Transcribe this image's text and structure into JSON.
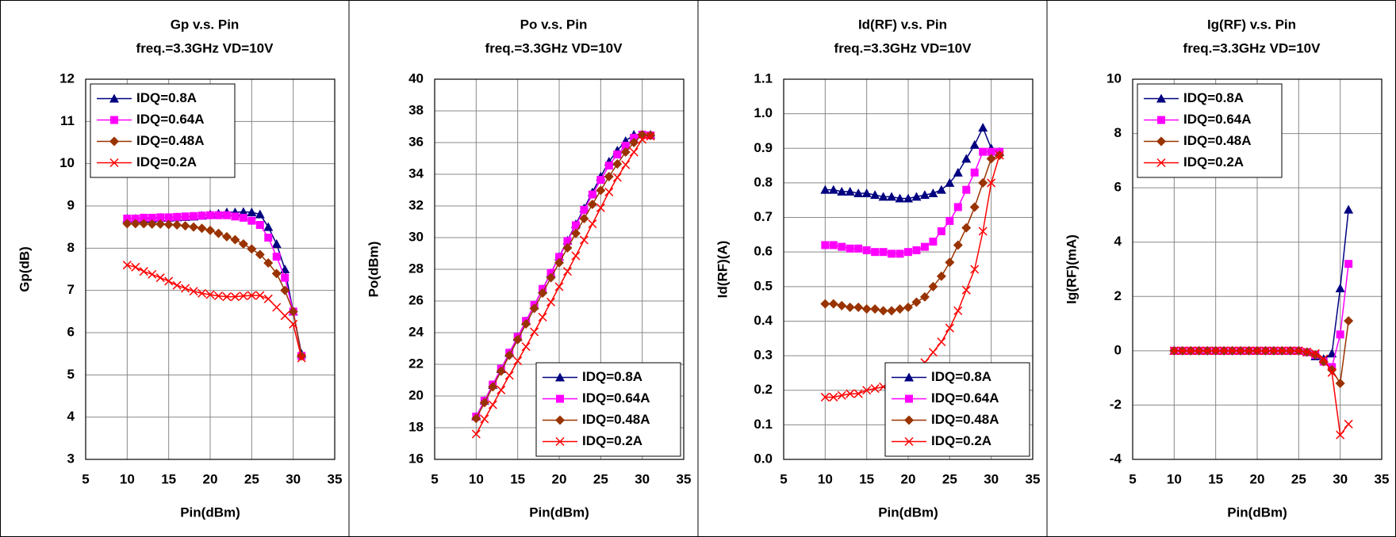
{
  "chart_data": [
    {
      "type": "line",
      "title": "Gp v.s. Pin",
      "subtitle": "freq.=3.3GHz  VD=10V",
      "x_label": "Pin(dBm)",
      "y_label": "Gp(dB)",
      "xlim": [
        5,
        35
      ],
      "xticks": [
        5,
        10,
        15,
        20,
        25,
        30,
        35
      ],
      "ylim": [
        3,
        12
      ],
      "yticks": [
        3,
        4,
        5,
        6,
        7,
        8,
        9,
        10,
        11,
        12
      ],
      "grid": true,
      "legend": "upper left",
      "x": [
        10,
        11,
        12,
        13,
        14,
        15,
        16,
        17,
        18,
        19,
        20,
        21,
        22,
        23,
        24,
        25,
        26,
        27,
        28,
        29,
        30,
        31
      ],
      "series": [
        {
          "name": "IDQ=0.8A",
          "color": "#000080",
          "marker": "triangle",
          "values": [
            8.7,
            8.7,
            8.7,
            8.7,
            8.72,
            8.72,
            8.73,
            8.74,
            8.75,
            8.77,
            8.8,
            8.82,
            8.85,
            8.85,
            8.86,
            8.85,
            8.8,
            8.5,
            8.1,
            7.5,
            6.5,
            5.5
          ]
        },
        {
          "name": "IDQ=0.64A",
          "color": "#ff00ff",
          "marker": "square",
          "values": [
            8.7,
            8.7,
            8.72,
            8.72,
            8.73,
            8.73,
            8.74,
            8.75,
            8.76,
            8.77,
            8.78,
            8.78,
            8.78,
            8.75,
            8.72,
            8.65,
            8.55,
            8.25,
            7.8,
            7.3,
            6.5,
            5.45
          ]
        },
        {
          "name": "IDQ=0.48A",
          "color": "#993300",
          "marker": "diamond",
          "values": [
            8.58,
            8.58,
            8.58,
            8.57,
            8.57,
            8.56,
            8.55,
            8.53,
            8.5,
            8.47,
            8.42,
            8.35,
            8.27,
            8.2,
            8.1,
            7.98,
            7.85,
            7.65,
            7.4,
            7.0,
            6.5,
            5.45
          ]
        },
        {
          "name": "IDQ=0.2A",
          "color": "#ff0000",
          "marker": "x",
          "values": [
            7.6,
            7.55,
            7.45,
            7.38,
            7.3,
            7.22,
            7.12,
            7.05,
            6.98,
            6.93,
            6.9,
            6.87,
            6.85,
            6.85,
            6.87,
            6.88,
            6.88,
            6.8,
            6.6,
            6.4,
            6.2,
            5.4
          ]
        }
      ]
    },
    {
      "type": "line",
      "title": "Po v.s. Pin",
      "subtitle": "freq.=3.3GHz  VD=10V",
      "x_label": "Pin(dBm)",
      "y_label": "Po(dBm)",
      "xlim": [
        5,
        35
      ],
      "xticks": [
        5,
        10,
        15,
        20,
        25,
        30,
        35
      ],
      "ylim": [
        16,
        40
      ],
      "yticks": [
        16,
        18,
        20,
        22,
        24,
        26,
        28,
        30,
        32,
        34,
        36,
        38,
        40
      ],
      "grid": true,
      "legend": "lower right",
      "x": [
        10,
        11,
        12,
        13,
        14,
        15,
        16,
        17,
        18,
        19,
        20,
        21,
        22,
        23,
        24,
        25,
        26,
        27,
        28,
        29,
        30,
        31
      ],
      "series": [
        {
          "name": "IDQ=0.8A",
          "color": "#000080",
          "marker": "triangle",
          "values": [
            18.7,
            19.7,
            20.7,
            21.7,
            22.72,
            23.72,
            24.73,
            25.74,
            26.75,
            27.77,
            28.8,
            29.82,
            30.85,
            31.85,
            32.86,
            33.85,
            34.8,
            35.5,
            36.1,
            36.5,
            36.5,
            36.5
          ]
        },
        {
          "name": "IDQ=0.64A",
          "color": "#ff00ff",
          "marker": "square",
          "values": [
            18.7,
            19.7,
            20.72,
            21.72,
            22.73,
            23.73,
            24.74,
            25.75,
            26.76,
            27.77,
            28.78,
            29.78,
            30.78,
            31.75,
            32.72,
            33.65,
            34.55,
            35.25,
            35.8,
            36.3,
            36.5,
            36.45
          ]
        },
        {
          "name": "IDQ=0.48A",
          "color": "#993300",
          "marker": "diamond",
          "values": [
            18.58,
            19.58,
            20.58,
            21.57,
            22.57,
            23.56,
            24.55,
            25.53,
            26.5,
            27.47,
            28.42,
            29.35,
            30.27,
            31.2,
            32.1,
            32.98,
            33.85,
            34.65,
            35.4,
            36.0,
            36.5,
            36.45
          ]
        },
        {
          "name": "IDQ=0.2A",
          "color": "#ff0000",
          "marker": "x",
          "values": [
            17.6,
            18.55,
            19.45,
            20.38,
            21.3,
            22.22,
            23.12,
            24.05,
            24.98,
            25.93,
            26.9,
            27.87,
            28.85,
            29.85,
            30.87,
            31.88,
            32.88,
            33.8,
            34.6,
            35.4,
            36.2,
            36.4
          ]
        }
      ]
    },
    {
      "type": "line",
      "title": "Id(RF) v.s. Pin",
      "subtitle": "freq.=3.3GHz  VD=10V",
      "x_label": "Pin(dBm)",
      "y_label": "Id(RF)(A)",
      "xlim": [
        5,
        35
      ],
      "xticks": [
        5,
        10,
        15,
        20,
        25,
        30,
        35
      ],
      "ylim": [
        0,
        1.1
      ],
      "yticks": [
        {
          "value": 0,
          "label": "0.0"
        },
        0.1,
        0.2,
        0.3,
        0.4,
        0.5,
        0.6,
        0.7,
        0.8,
        0.9,
        {
          "value": 1,
          "label": "1.0"
        },
        1.1
      ],
      "grid": true,
      "legend": "lower right",
      "x": [
        10,
        11,
        12,
        13,
        14,
        15,
        16,
        17,
        18,
        19,
        20,
        21,
        22,
        23,
        24,
        25,
        26,
        27,
        28,
        29,
        30,
        31
      ],
      "series": [
        {
          "name": "IDQ=0.8A",
          "color": "#000080",
          "marker": "triangle",
          "values": [
            0.78,
            0.78,
            0.775,
            0.775,
            0.77,
            0.77,
            0.765,
            0.76,
            0.76,
            0.755,
            0.755,
            0.76,
            0.765,
            0.77,
            0.78,
            0.8,
            0.83,
            0.87,
            0.91,
            0.96,
            0.9,
            0.89
          ]
        },
        {
          "name": "IDQ=0.64A",
          "color": "#ff00ff",
          "marker": "square",
          "values": [
            0.62,
            0.62,
            0.615,
            0.61,
            0.61,
            0.605,
            0.6,
            0.6,
            0.595,
            0.595,
            0.6,
            0.605,
            0.615,
            0.63,
            0.66,
            0.69,
            0.73,
            0.78,
            0.83,
            0.89,
            0.89,
            0.89
          ]
        },
        {
          "name": "IDQ=0.48A",
          "color": "#993300",
          "marker": "diamond",
          "values": [
            0.45,
            0.45,
            0.445,
            0.44,
            0.44,
            0.435,
            0.435,
            0.43,
            0.43,
            0.435,
            0.44,
            0.455,
            0.47,
            0.5,
            0.53,
            0.57,
            0.62,
            0.67,
            0.73,
            0.8,
            0.87,
            0.88
          ]
        },
        {
          "name": "IDQ=0.2A",
          "color": "#ff0000",
          "marker": "x",
          "values": [
            0.18,
            0.18,
            0.185,
            0.19,
            0.19,
            0.2,
            0.205,
            0.21,
            0.22,
            0.23,
            0.245,
            0.26,
            0.28,
            0.31,
            0.34,
            0.38,
            0.43,
            0.49,
            0.55,
            0.66,
            0.8,
            0.88
          ]
        }
      ]
    },
    {
      "type": "line",
      "title": "Ig(RF)  v.s.  Pin",
      "subtitle": "freq.=3.3GHz  VD=10V",
      "x_label": "Pin(dBm)",
      "y_label": "Ig(RF)(mA)",
      "xlim": [
        5,
        35
      ],
      "xticks": [
        5,
        10,
        15,
        20,
        25,
        30,
        35
      ],
      "ylim": [
        -4,
        10
      ],
      "yticks": [
        -4,
        -2,
        0,
        2,
        4,
        6,
        8,
        10
      ],
      "grid": true,
      "legend": "upper left",
      "x": [
        10,
        11,
        12,
        13,
        14,
        15,
        16,
        17,
        18,
        19,
        20,
        21,
        22,
        23,
        24,
        25,
        26,
        27,
        28,
        29,
        30,
        31
      ],
      "series": [
        {
          "name": "IDQ=0.8A",
          "color": "#000080",
          "marker": "triangle",
          "values": [
            0,
            0,
            0,
            0,
            0,
            0,
            0,
            0,
            0,
            0,
            0,
            0,
            0,
            0,
            0,
            0,
            -0.05,
            -0.2,
            -0.3,
            -0.1,
            2.3,
            5.2
          ]
        },
        {
          "name": "IDQ=0.64A",
          "color": "#ff00ff",
          "marker": "square",
          "values": [
            0,
            0,
            0,
            0,
            0,
            0,
            0,
            0,
            0,
            0,
            0,
            0,
            0,
            0,
            0,
            0,
            -0.05,
            -0.15,
            -0.4,
            -0.6,
            0.6,
            3.2
          ]
        },
        {
          "name": "IDQ=0.48A",
          "color": "#993300",
          "marker": "diamond",
          "values": [
            0,
            0,
            0,
            0,
            0,
            0,
            0,
            0,
            0,
            0,
            0,
            0,
            0,
            0,
            0,
            0,
            -0.05,
            -0.15,
            -0.4,
            -0.7,
            -1.2,
            1.1
          ]
        },
        {
          "name": "IDQ=0.2A",
          "color": "#ff0000",
          "marker": "x",
          "values": [
            0,
            0,
            0,
            0,
            0,
            0,
            0,
            0,
            0,
            0,
            0,
            0,
            0,
            0,
            0,
            0,
            -0.05,
            -0.1,
            -0.3,
            -0.8,
            -3.1,
            -2.7
          ]
        }
      ]
    }
  ]
}
